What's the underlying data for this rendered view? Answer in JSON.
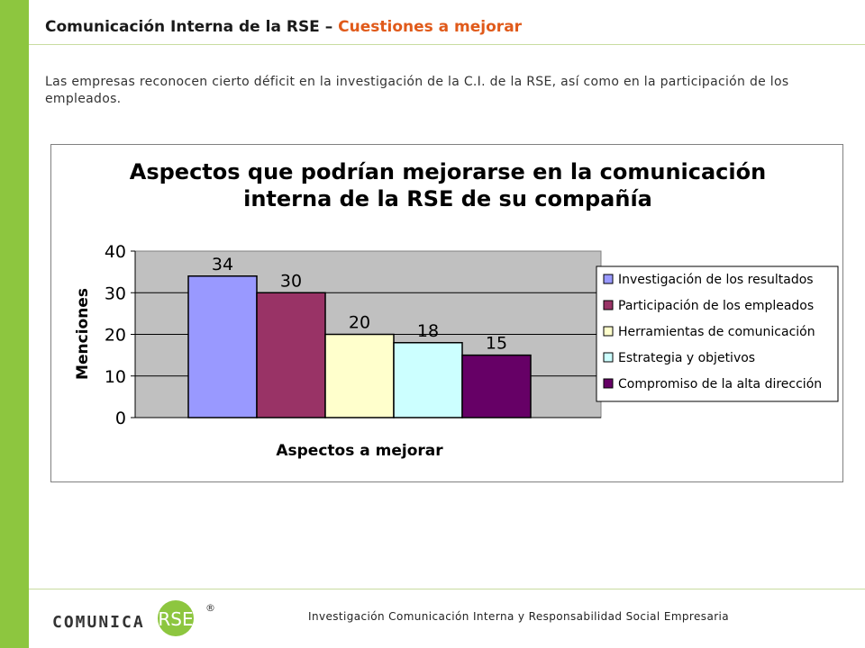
{
  "header": {
    "title_main": "Comunicación Interna de la RSE – ",
    "title_highlight": "Cuestiones a mejorar"
  },
  "intro_text": "Las empresas reconocen cierto déficit en la investigación de la C.I. de la RSE, así como en la participación de los empleados.",
  "chart_data": {
    "type": "bar",
    "title_line1": "Aspectos que podrían mejorarse en la comunicación",
    "title_line2": "interna de la RSE de su compañía",
    "xlabel": "Aspectos a mejorar",
    "ylabel": "Menciones",
    "ylim": [
      0,
      40
    ],
    "yticks": [
      "0",
      "10",
      "20",
      "30",
      "40"
    ],
    "grid": true,
    "legend_position": "right",
    "series": [
      {
        "name": "Investigación de los resultados",
        "value": 34,
        "color": "#9999ff"
      },
      {
        "name": "Participación de los empleados",
        "value": 30,
        "color": "#993366"
      },
      {
        "name": "Herramientas de comunicación",
        "value": 20,
        "color": "#ffffcc"
      },
      {
        "name": "Estrategia y objetivos",
        "value": 18,
        "color": "#ccffff"
      },
      {
        "name": "Compromiso de la alta dirección",
        "value": 15,
        "color": "#660066"
      }
    ]
  },
  "footer": {
    "logo_word": "COMUNICA",
    "logo_badge": "RSE",
    "logo_mark": "®",
    "text": "Investigación  Comunicación  Interna  y Responsabilidad  Social Empresaria"
  },
  "colors": {
    "sidebar": "#8dc63f",
    "title_highlight": "#e05a1a",
    "plot_background": "#c0c0c0",
    "logo_circle": "#8dc63f"
  }
}
